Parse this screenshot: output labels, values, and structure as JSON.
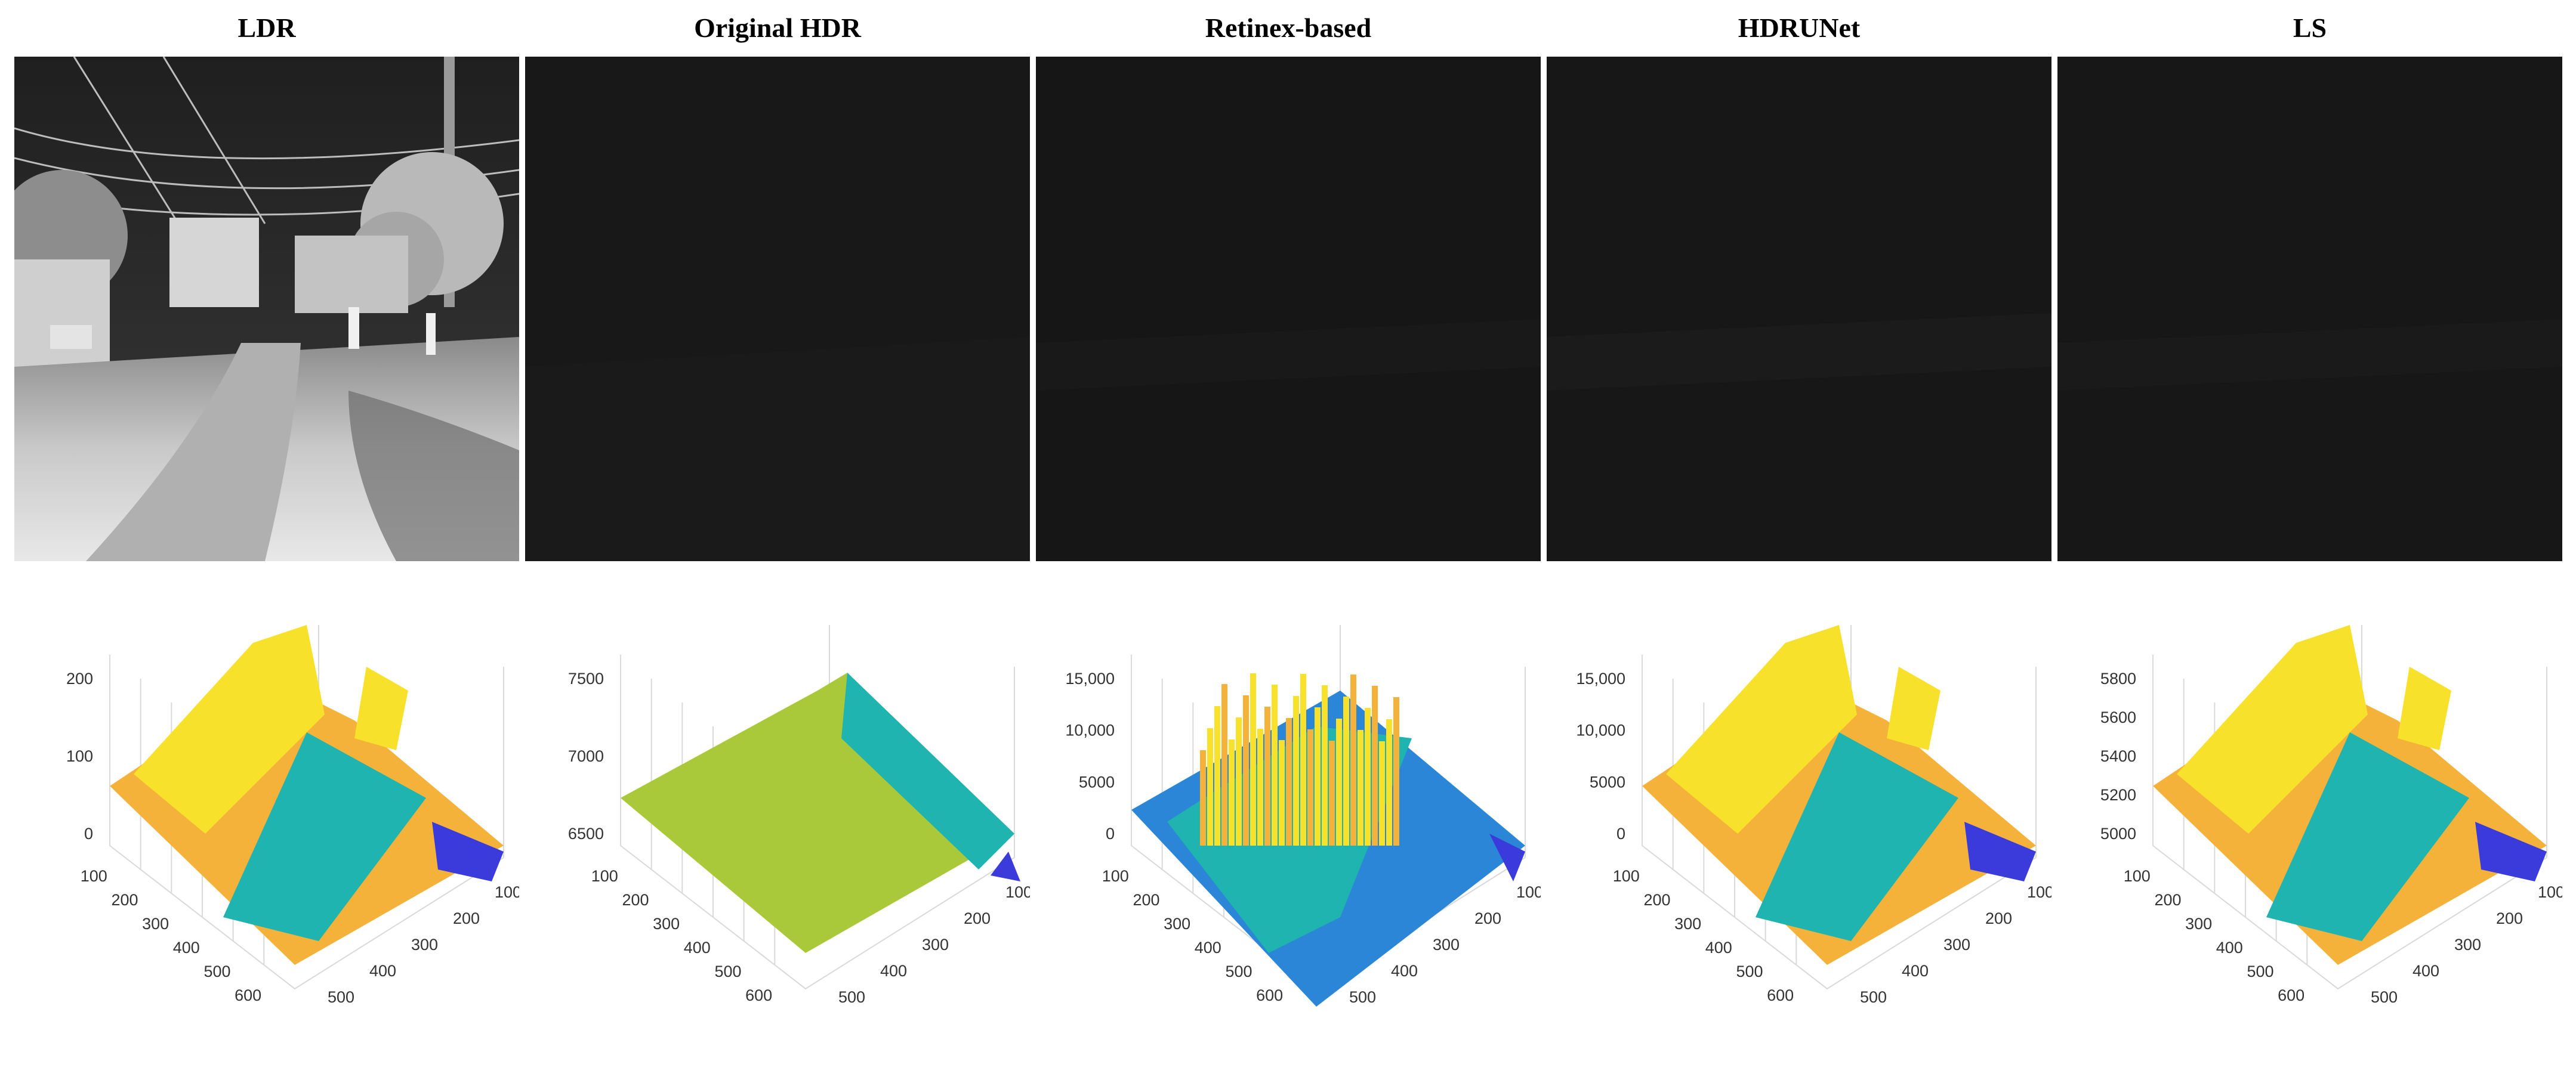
{
  "columns": [
    {
      "title": "LDR",
      "image_tone": "bright",
      "z_ticks": [
        "0",
        "100",
        "200"
      ]
    },
    {
      "title": "Original HDR",
      "image_tone": "dark",
      "z_ticks": [
        "6500",
        "7000",
        "7500"
      ]
    },
    {
      "title": "Retinex-based",
      "image_tone": "dark",
      "z_ticks": [
        "0",
        "5000",
        "10,000",
        "15,000"
      ]
    },
    {
      "title": "HDRUNet",
      "image_tone": "dark",
      "z_ticks": [
        "0",
        "5000",
        "10,000",
        "15,000"
      ]
    },
    {
      "title": "LS",
      "image_tone": "dark",
      "z_ticks": [
        "5000",
        "5200",
        "5400",
        "5600",
        "5800"
      ]
    }
  ],
  "left_axis_ticks": [
    "100",
    "200",
    "300",
    "400",
    "500",
    "600"
  ],
  "right_axis_ticks": [
    "100",
    "200",
    "300",
    "400",
    "500"
  ],
  "colors": {
    "dark_panel": "#171717",
    "surface_low": "#3b3bdc",
    "surface_mid": "#20b4b0",
    "surface_high": "#f7e12a",
    "surface_warm": "#f5b23a"
  }
}
